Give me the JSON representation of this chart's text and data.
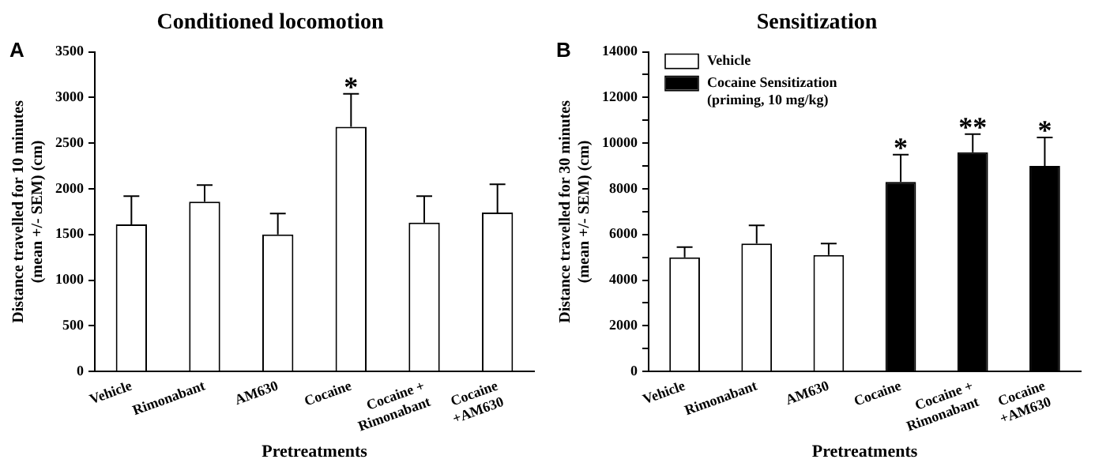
{
  "chart_data": [
    {
      "type": "bar",
      "title": "Conditioned locomotion",
      "xlabel": "Pretreatments",
      "ylabel": "Distance travelled for 10 minutes\n(mean +/- SEM) (cm)",
      "categories": [
        "Vehicle",
        "Rimonabant",
        "AM630",
        "Cocaine",
        "Cocaine +\nRimonabant",
        "Cocaine\n+AM630"
      ],
      "values": [
        1610,
        1860,
        1500,
        2680,
        1630,
        1740
      ],
      "errors": [
        310,
        180,
        230,
        360,
        290,
        310
      ],
      "color": "#ffffff",
      "ylim": [
        0,
        3500
      ],
      "yticks": [
        0,
        500,
        1000,
        1500,
        2000,
        2500,
        3000,
        3500
      ],
      "grid": false,
      "annotations": [
        "A",
        {
          "text": "*",
          "x": "Cocaine",
          "y": 3040
        }
      ]
    },
    {
      "type": "bar",
      "title": "Sensitization",
      "xlabel": "Pretreatments",
      "ylabel": "Distance travelled for 30 minutes\n(mean +/- SEM) (cm)",
      "categories": [
        "Vehicle",
        "Rimonabant",
        "AM630",
        "Cocaine",
        "Cocaine +\nRimonabant",
        "Cocaine\n+AM630"
      ],
      "series": [
        {
          "name": "Vehicle",
          "color": "#ffffff",
          "values": [
            5000,
            5600,
            5100,
            null,
            null,
            null
          ],
          "errors": [
            450,
            800,
            500,
            null,
            null,
            null
          ]
        },
        {
          "name": "Cocaine Sensitization (priming, 10 mg/kg)",
          "color": "#000000",
          "values": [
            null,
            null,
            null,
            8300,
            9600,
            9000
          ],
          "errors": [
            null,
            null,
            null,
            1200,
            800,
            1250
          ]
        }
      ],
      "ylim": [
        0,
        14000
      ],
      "yticks": [
        0,
        {
          "value": 1000,
          "label": null
        },
        2000,
        {
          "value": 3000,
          "label": null
        },
        4000,
        {
          "value": 5000,
          "label": null
        },
        6000,
        {
          "value": 7000,
          "label": null
        },
        8000,
        {
          "value": 9000,
          "label": null
        },
        10000,
        {
          "value": 11000,
          "label": null
        },
        12000,
        {
          "value": 13000,
          "label": null
        },
        14000
      ],
      "grid": false,
      "legend": "top left",
      "annotations": [
        "B",
        {
          "text": "*",
          "x": "Cocaine",
          "y": 9500
        },
        {
          "text": "**",
          "x": "Cocaine +\nRimonabant",
          "y": 10400
        },
        {
          "text": "*",
          "x": "Cocaine\n+AM630",
          "y": 10250
        }
      ]
    }
  ]
}
